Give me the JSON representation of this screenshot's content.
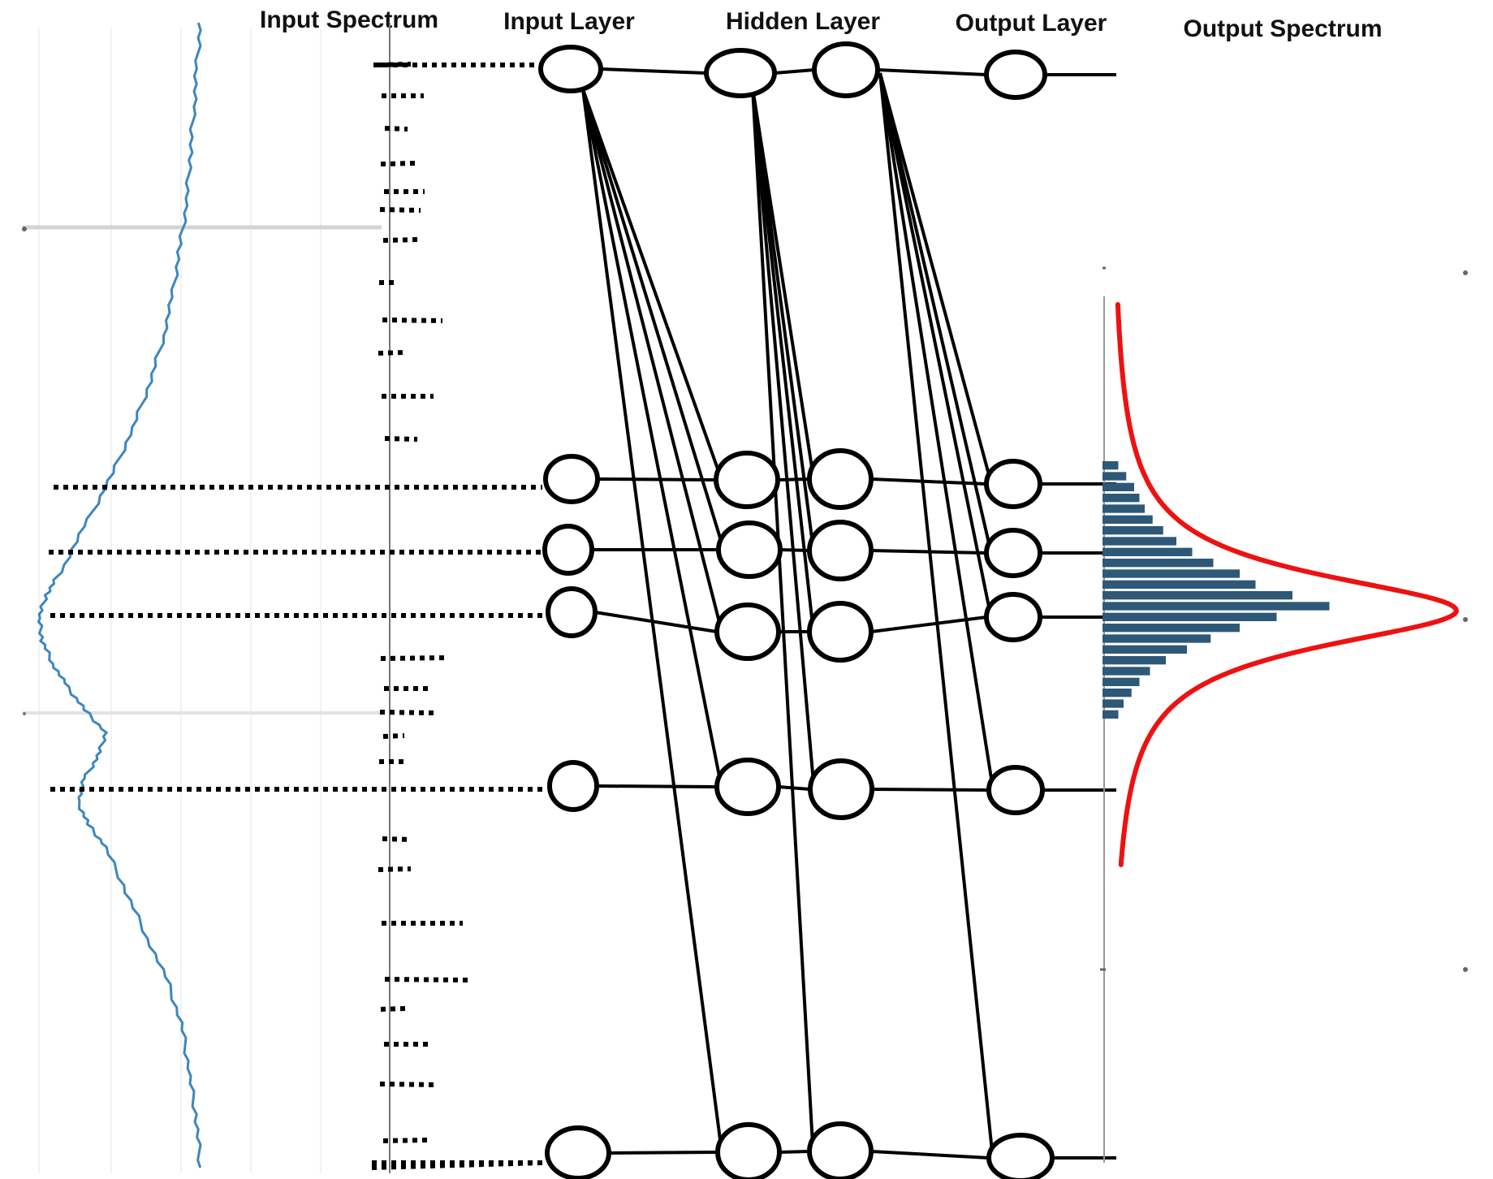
{
  "titles": {
    "input_spectrum": "Input Spectrum",
    "input_layer": "Input Layer",
    "hidden_layer": "Hidden Layer",
    "output_layer": "Output Layer",
    "output_spectrum": "Output Spectrum"
  },
  "colors": {
    "input_curve": "#3d86bf",
    "output_fit": "#ee1111",
    "output_bars": "#2e5878",
    "network": "#000000",
    "gridlines": "#e6e6e6"
  },
  "diagram": {
    "input_nodes": 6,
    "hidden_layers": 2,
    "hidden_nodes_per_layer": 6,
    "output_nodes": 6,
    "active_input_nodes": 6,
    "dotted_ticks_between_active_nodes": true
  },
  "chart_data": [
    {
      "type": "line",
      "name": "input_spectrum",
      "orientation": "vertical",
      "note_profile": [
        [
          0.0,
          0.46
        ],
        [
          0.04,
          0.45
        ],
        [
          0.08,
          0.44
        ],
        [
          0.12,
          0.43
        ],
        [
          0.16,
          0.42
        ],
        [
          0.2,
          0.4
        ],
        [
          0.24,
          0.38
        ],
        [
          0.28,
          0.35
        ],
        [
          0.32,
          0.31
        ],
        [
          0.36,
          0.26
        ],
        [
          0.4,
          0.2
        ],
        [
          0.44,
          0.13
        ],
        [
          0.48,
          0.06
        ],
        [
          0.5,
          0.02
        ],
        [
          0.52,
          0.0
        ],
        [
          0.54,
          0.01
        ],
        [
          0.56,
          0.04
        ],
        [
          0.58,
          0.08
        ],
        [
          0.6,
          0.13
        ],
        [
          0.62,
          0.19
        ],
        [
          0.64,
          0.17
        ],
        [
          0.66,
          0.13
        ],
        [
          0.68,
          0.11
        ],
        [
          0.7,
          0.14
        ],
        [
          0.72,
          0.19
        ],
        [
          0.76,
          0.25
        ],
        [
          0.8,
          0.31
        ],
        [
          0.84,
          0.37
        ],
        [
          0.88,
          0.41
        ],
        [
          0.92,
          0.43
        ],
        [
          0.96,
          0.45
        ],
        [
          1.0,
          0.46
        ]
      ]
    },
    {
      "type": "bar",
      "name": "output_spectrum",
      "orientation": "horizontal",
      "values": [
        0.06,
        0.09,
        0.12,
        0.14,
        0.16,
        0.19,
        0.23,
        0.28,
        0.34,
        0.42,
        0.52,
        0.58,
        0.72,
        0.86,
        0.66,
        0.52,
        0.41,
        0.32,
        0.24,
        0.18,
        0.14,
        0.11,
        0.08,
        0.06
      ],
      "fit": "lorentzian",
      "fit_peak": 1.0
    }
  ]
}
